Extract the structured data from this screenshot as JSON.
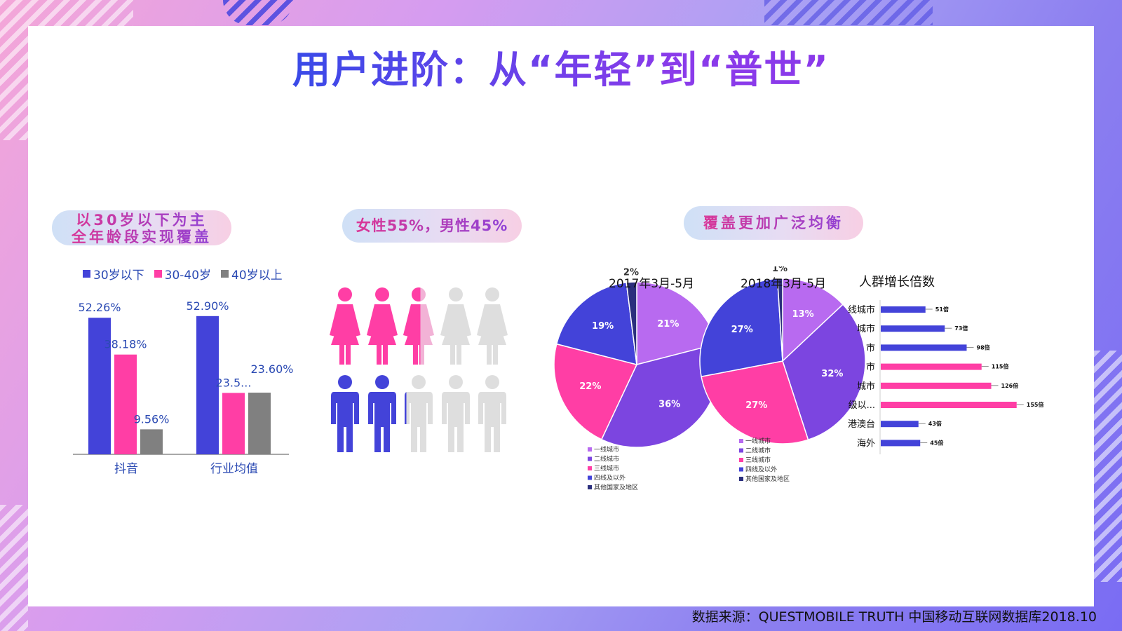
{
  "title": "用户进阶：从“年轻”到“普世”",
  "source": "数据来源：QUESTMOBILE TRUTH 中国移动互联网数据库2018.10",
  "pills": {
    "age_line1": "以30岁以下为主",
    "age_line2": "全年龄段实现覆盖",
    "gender": "女性55%，男性45%",
    "coverage": "覆盖更加广泛均衡"
  },
  "colors": {
    "blue": "#4343d9",
    "pink": "#ff3ea5",
    "gray": "#808080",
    "light_purple": "#b86af0",
    "purple": "#7c45e0",
    "navy": "#2b2f7d",
    "figure_gray": "#dedede",
    "figure_light_pink": "#f2b2d6"
  },
  "icons": {
    "female": "female-figure-icon",
    "male": "male-figure-icon"
  },
  "chart_data": [
    {
      "type": "bar",
      "categories": [
        "抖音",
        "行业均值"
      ],
      "series": [
        {
          "name": "30岁以下",
          "values": [
            52.26,
            52.9
          ],
          "labels": [
            "52.26%",
            "52.90%"
          ],
          "color": "#4343d9"
        },
        {
          "name": "30-40岁",
          "values": [
            38.18,
            23.5
          ],
          "labels": [
            "38.18%",
            "23.5..."
          ],
          "color": "#ff3ea5"
        },
        {
          "name": "40岁以上",
          "values": [
            9.56,
            23.6
          ],
          "labels": [
            "9.56%",
            "23.60%"
          ],
          "color": "#808080"
        }
      ],
      "ylim": [
        0,
        55
      ],
      "legend": "top",
      "grid": false
    },
    {
      "type": "pie",
      "title": "2017年3月-5月",
      "labels": [
        "一线城市",
        "二线城市",
        "三线城市",
        "四线及以外",
        "其他国家及地区"
      ],
      "slices": [
        21,
        36,
        22,
        19,
        2
      ],
      "slice_labels": [
        "21%",
        "36%",
        "22%",
        "19%",
        "2%"
      ],
      "colors": [
        "#b86af0",
        "#7c45e0",
        "#ff3ea5",
        "#4343d9",
        "#2b2f7d"
      ],
      "legend": "bottom"
    },
    {
      "type": "pie",
      "title": "2018年3月-5月",
      "labels": [
        "一线城市",
        "二线城市",
        "三线城市",
        "四线及以外",
        "其他国家及地区"
      ],
      "slices": [
        13,
        32,
        27,
        27,
        1
      ],
      "slice_labels": [
        "13%",
        "32%",
        "27%",
        "27%",
        "1%"
      ],
      "colors": [
        "#b86af0",
        "#7c45e0",
        "#ff3ea5",
        "#4343d9",
        "#2b2f7d"
      ],
      "legend": "bottom"
    },
    {
      "type": "bar",
      "orientation": "horizontal",
      "title": "人群增长倍数",
      "categories": [
        "一线城市",
        "二线城市",
        "三线城市",
        "四线城市",
        "五线城市",
        "六线及以...",
        "港澳台",
        "海外"
      ],
      "tick_labels": [
        "线城市",
        "城市",
        "市",
        "市",
        "城市",
        "级以...",
        "港澳台",
        "海外"
      ],
      "values": [
        51,
        73,
        98,
        115,
        126,
        155,
        43,
        45
      ],
      "value_labels": [
        "51倍",
        "73倍",
        "98倍",
        "115倍",
        "126倍",
        "155倍",
        "43倍",
        "45倍"
      ],
      "colors": [
        "#4343d9",
        "#4343d9",
        "#4343d9",
        "#ff3ea5",
        "#ff3ea5",
        "#ff3ea5",
        "#4343d9",
        "#4343d9"
      ],
      "xlim": [
        0,
        160
      ]
    },
    {
      "type": "pictograph",
      "series": [
        {
          "name": "女性",
          "value": 55,
          "color": "#ff3ea5"
        },
        {
          "name": "男性",
          "value": 45,
          "color": "#4343d9"
        }
      ]
    }
  ]
}
